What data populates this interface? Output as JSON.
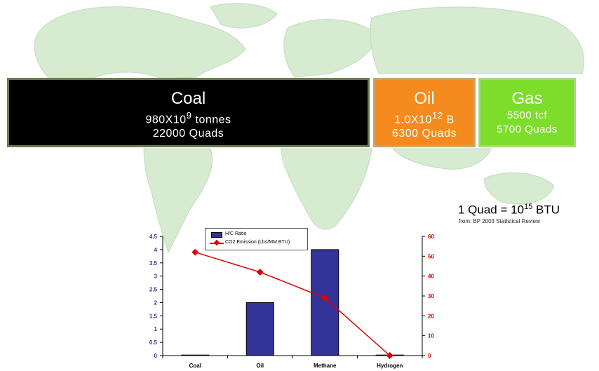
{
  "reserves": {
    "coal": {
      "name": "Coal",
      "amount_prefix": "980X10",
      "amount_exp": "9",
      "amount_suffix": " tonnes",
      "energy": "22000 Quads"
    },
    "oil": {
      "name": "Oil",
      "amount_prefix": "1.0X10",
      "amount_exp": "12",
      "amount_suffix": " B",
      "energy": "6300 Quads"
    },
    "gas": {
      "name": "Gas",
      "amount": "5500 tcf",
      "energy": "5700 Quads"
    }
  },
  "note": {
    "prefix": "1 Quad = 10",
    "exp": "15",
    "suffix": " BTU",
    "source": "from:  BP 2003 Statistical Review"
  },
  "colors": {
    "coal_box": "#000000",
    "oil_box": "#f58a1f",
    "gas_box": "#7ddd2b",
    "bar": "#333399",
    "line": "#e00000",
    "left_axis_text": "#333399",
    "right_axis_text": "#e00000"
  },
  "background_image": "world-map",
  "chart_data": {
    "type": "bar+line",
    "categories": [
      "Coal",
      "Oil",
      "Methane",
      "Hydrogen"
    ],
    "series": [
      {
        "name": "H/C Ratio",
        "type": "bar",
        "axis": "left",
        "values": [
          0.01,
          2,
          4,
          0
        ]
      },
      {
        "name": "CO2 Emission (Lbs/MM BTU)",
        "type": "line",
        "axis": "right",
        "values": [
          52,
          42,
          29,
          0
        ]
      }
    ],
    "y_left": {
      "range": [
        0,
        4.5
      ],
      "ticks": [
        "0",
        "0.5",
        "1",
        "1.5",
        "2",
        "2.5",
        "3",
        "3.5",
        "4",
        "4.5"
      ]
    },
    "y_right": {
      "range": [
        0,
        60
      ],
      "ticks": [
        "0",
        "10",
        "20",
        "30",
        "40",
        "50",
        "60"
      ]
    },
    "legend": "top-left",
    "grid": false
  }
}
